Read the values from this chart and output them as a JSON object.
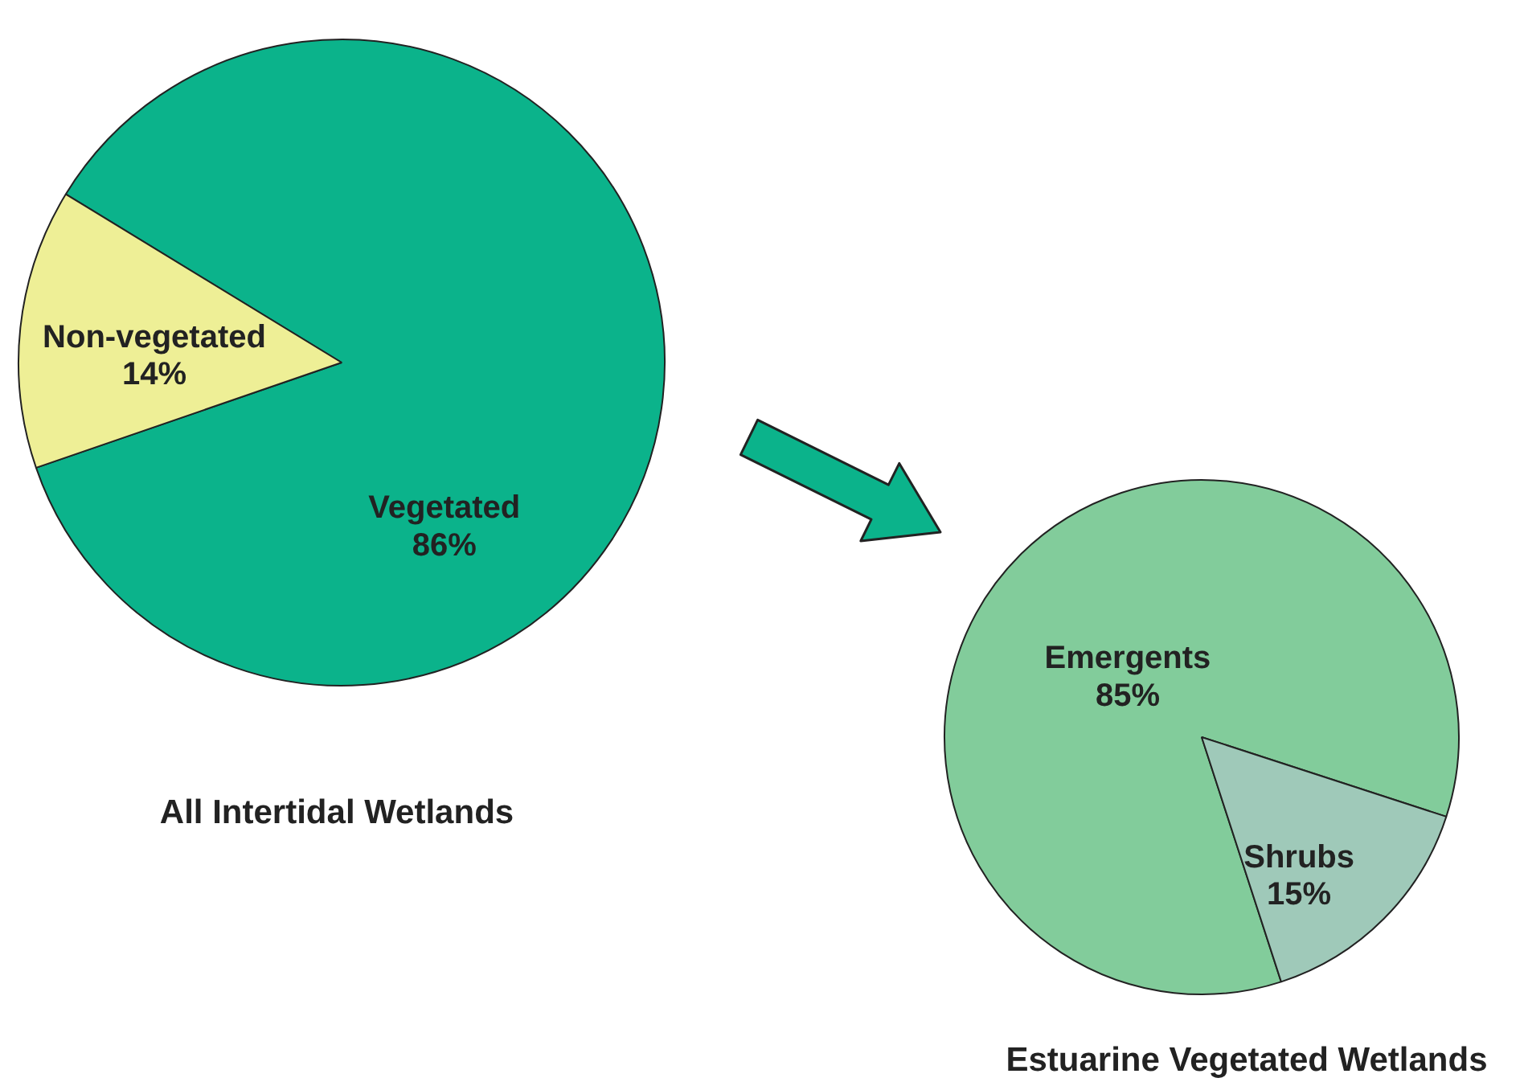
{
  "chart_data": [
    {
      "type": "pie",
      "title": "All Intertidal Wetlands",
      "categories": [
        "Vegetated",
        "Non-vegetated"
      ],
      "values": [
        86,
        14
      ],
      "colors": [
        "#0bb38b",
        "#eeef96"
      ],
      "value_labels": [
        "86%",
        "14%"
      ]
    },
    {
      "type": "pie",
      "title": "Estuarine Vegetated Wetlands",
      "categories": [
        "Emergents",
        "Shrubs"
      ],
      "values": [
        85,
        15
      ],
      "colors": [
        "#82cc9b",
        "#9fc9b9"
      ],
      "value_labels": [
        "85%",
        "15%"
      ]
    }
  ]
}
